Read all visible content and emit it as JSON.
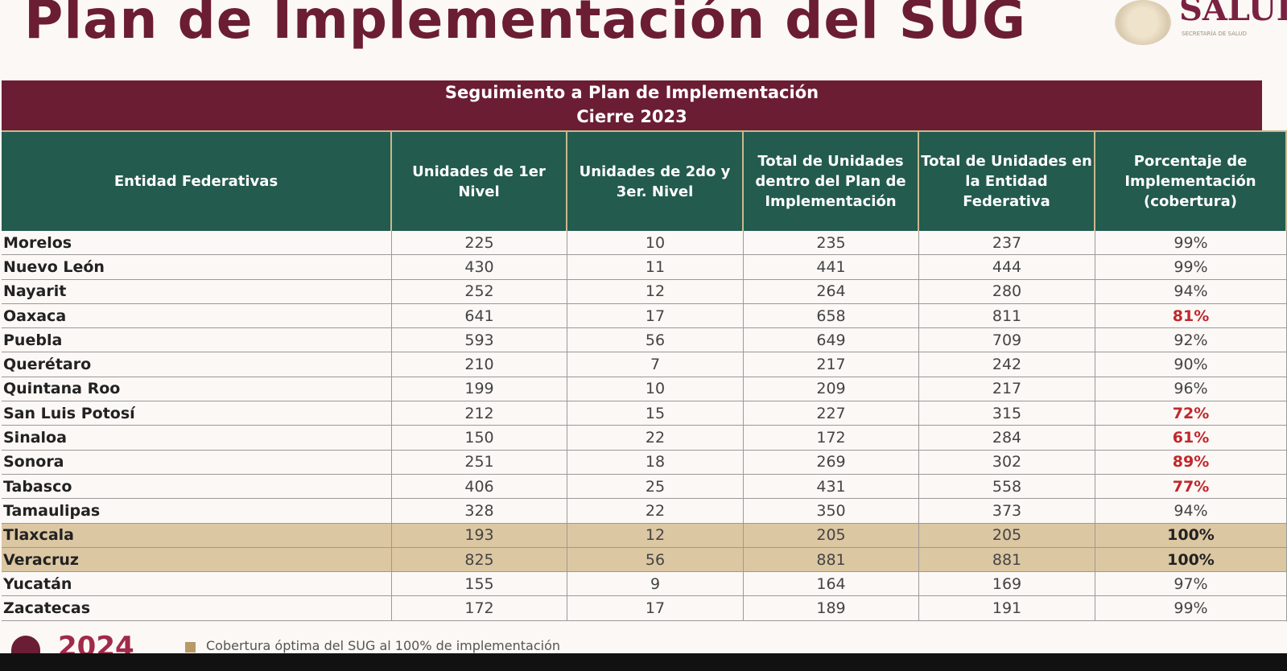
{
  "title": "Plan de Implementación del SUG",
  "brand": {
    "name": "SALUD",
    "subtitle": "SECRETARÍA DE SALUD"
  },
  "table": {
    "banner_line1": "Seguimiento a Plan de Implementación",
    "banner_line2": "Cierre 2023",
    "headers": [
      "Entidad Federativas",
      "Unidades de 1er Nivel",
      "Unidades de 2do y 3er. Nivel",
      "Total de Unidades dentro del Plan de Implementación",
      "Total de Unidades en la Entidad Federativa",
      "Porcentaje de Implementación (cobertura)"
    ],
    "rows": [
      [
        "Morelos",
        "225",
        "10",
        "235",
        "237",
        "99%"
      ],
      [
        "Nuevo León",
        "430",
        "11",
        "441",
        "444",
        "99%"
      ],
      [
        "Nayarit",
        "252",
        "12",
        "264",
        "280",
        "94%"
      ],
      [
        "Oaxaca",
        "641",
        "17",
        "658",
        "811",
        "81%"
      ],
      [
        "Puebla",
        "593",
        "56",
        "649",
        "709",
        "92%"
      ],
      [
        "Querétaro",
        "210",
        "7",
        "217",
        "242",
        "90%"
      ],
      [
        "Quintana Roo",
        "199",
        "10",
        "209",
        "217",
        "96%"
      ],
      [
        "San Luis Potosí",
        "212",
        "15",
        "227",
        "315",
        "72%"
      ],
      [
        "Sinaloa",
        "150",
        "22",
        "172",
        "284",
        "61%"
      ],
      [
        "Sonora",
        "251",
        "18",
        "269",
        "302",
        "89%"
      ],
      [
        "Tabasco",
        "406",
        "25",
        "431",
        "558",
        "77%"
      ],
      [
        "Tamaulipas",
        "328",
        "22",
        "350",
        "373",
        "94%"
      ],
      [
        "Tlaxcala",
        "193",
        "12",
        "205",
        "205",
        "100%"
      ],
      [
        "Veracruz",
        "825",
        "56",
        "881",
        "881",
        "100%"
      ],
      [
        "Yucatán",
        "155",
        "9",
        "164",
        "169",
        "97%"
      ],
      [
        "Zacatecas",
        "172",
        "17",
        "189",
        "191",
        "99%"
      ]
    ],
    "red_rows": [
      3,
      7,
      8,
      9,
      10
    ],
    "highlight_rows": [
      12,
      13
    ]
  },
  "footer": {
    "year": "2024",
    "legend": "Cobertura óptima del SUG al 100% de implementación"
  },
  "colors": {
    "maroon": "#6b1d33",
    "green": "#235b4e",
    "highlight": "#dcc7a3",
    "alert": "#c0282d"
  }
}
